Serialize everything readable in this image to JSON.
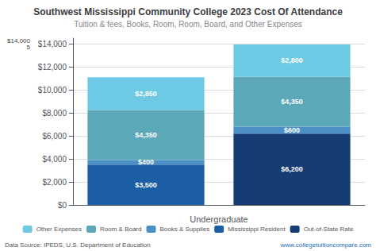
{
  "chart_data": {
    "type": "bar",
    "title": "Southwest Mississippi Community College 2023 Cost Of Attendance",
    "subtitle": "Tuition & fees, Books, Room, Room, Board, and Other Expenses",
    "xlabel": "Undergraduate",
    "categories": [
      null,
      null
    ],
    "stacked": true,
    "data_labels": true,
    "grid": true,
    "legend": "bottom",
    "series": [
      {
        "name": "Other Expenses",
        "color": "#6ECAE4",
        "values": [
          2850,
          2800
        ],
        "value_labels": [
          "$2,850",
          "$2,800"
        ]
      },
      {
        "name": "Room & Board",
        "color": "#5BA8B8",
        "values": [
          4350,
          4350
        ],
        "value_labels": [
          "$4,350",
          "$4,350"
        ]
      },
      {
        "name": "Books & Supplies",
        "color": "#4A90C4",
        "values": [
          400,
          600
        ],
        "value_labels": [
          "$400",
          "$600"
        ]
      },
      {
        "name": "Mississippi Resident",
        "color": "#1B5EA6",
        "values": [
          3500,
          null
        ],
        "value_labels": [
          "$3,500",
          null
        ]
      },
      {
        "name": "Out-of-State Rate",
        "color": "#163d73",
        "values": [
          null,
          6200
        ],
        "value_labels": [
          null,
          "$6,200"
        ]
      }
    ],
    "ylim": [
      0,
      14500
    ],
    "yticks": [
      {
        "value": 0,
        "label": "$0"
      },
      {
        "value": 2000,
        "label": "$2,000"
      },
      {
        "value": 4000,
        "label": "$4,000"
      },
      {
        "value": 6000,
        "label": "$6,000"
      },
      {
        "value": 8000,
        "label": "$8,000"
      },
      {
        "value": 10000,
        "label": "$10,000"
      },
      {
        "value": 12000,
        "label": "$12,000"
      },
      {
        "value": 14000,
        "label": "$14,000"
      }
    ],
    "annotations": [
      {
        "text": "$14,000\n5",
        "y": 14000
      },
      {
        "text": "Data Source: IPEDS, U.S. Department of Education"
      },
      {
        "text": "www.collegetuitioncompare.com"
      }
    ]
  }
}
